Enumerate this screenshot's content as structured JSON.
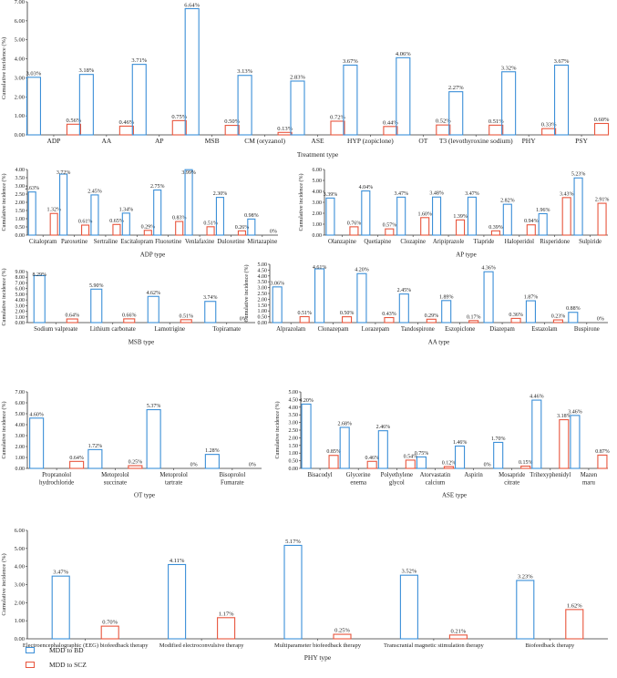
{
  "colors": {
    "bd": "#3b8fd8",
    "scz": "#e8553d",
    "axis": "#333333",
    "text": "#222222"
  },
  "legend": {
    "bd_label": "MDD to BD",
    "scz_label": "MDD to SCZ"
  },
  "chart_data": [
    {
      "type": "bar",
      "xlabel": "Treatment type",
      "ylabel": "Cumulative incidence (%)",
      "ylim": [
        0,
        7
      ],
      "yticks": [
        "0.00",
        "1.00",
        "2.00",
        "3.00",
        "4.00",
        "5.00",
        "6.00",
        "7.00"
      ],
      "categories": [
        "ADP",
        "AA",
        "AP",
        "MSB",
        "CM (oryzanol)",
        "ASE",
        "HYP (zopiclone)",
        "OT",
        "T3 (levothyroxine sodium)",
        "PHY",
        "PSY"
      ],
      "series": [
        {
          "name": "MDD to BD",
          "values": [
            3.03,
            3.18,
            3.71,
            6.64,
            3.13,
            2.83,
            3.67,
            4.06,
            2.27,
            3.32,
            3.67
          ],
          "labels": [
            "3.03%",
            "3.18%",
            "3.71%",
            "6.64%",
            "3.13%",
            "2.83%",
            "3.67%",
            "4.06%",
            "2.27%",
            "3.32%",
            "3.67%"
          ]
        },
        {
          "name": "MDD to SCZ",
          "values": [
            0.56,
            0.46,
            0.75,
            0.5,
            0.13,
            0.72,
            0.44,
            0.52,
            0.51,
            0.33,
            0.6
          ],
          "labels": [
            "0.56%",
            "0.46%",
            "0.75%",
            "0.50%",
            "0.13%",
            "0.72%",
            "0.44%",
            "0.52%",
            "0.51%",
            "0.33%",
            "0.60%"
          ]
        }
      ]
    },
    {
      "type": "bar",
      "xlabel": "ADP type",
      "ylabel": "Cumulative incidence (%)",
      "ylim": [
        0,
        4
      ],
      "yticks": [
        "0.00",
        "0.50",
        "1.00",
        "1.50",
        "2.00",
        "2.50",
        "3.00",
        "3.50",
        "4.00"
      ],
      "categories": [
        "Citalopram",
        "Paroxetine",
        "Sertraline",
        "Escitalopram",
        "Fluoxetine",
        "Venlafaxine",
        "Duloxetine",
        "Mirtazapine"
      ],
      "series": [
        {
          "name": "MDD to BD",
          "values": [
            2.63,
            3.72,
            2.45,
            1.34,
            2.75,
            3.99,
            2.3,
            0.98
          ],
          "labels": [
            "2.63%",
            "3.72%",
            "2.45%",
            "1.34%",
            "2.75%",
            "3.99%",
            "2.30%",
            "0.98%"
          ]
        },
        {
          "name": "MDD to SCZ",
          "values": [
            1.32,
            0.61,
            0.65,
            0.29,
            0.83,
            0.51,
            0.26,
            0
          ],
          "labels": [
            "1.32%",
            "0.61%",
            "0.65%",
            "0.29%",
            "0.83%",
            "0.51%",
            "0.26%",
            "0%"
          ]
        }
      ]
    },
    {
      "type": "bar",
      "xlabel": "AP type",
      "ylabel": "Cumulative incidence (%)",
      "ylim": [
        0,
        6
      ],
      "yticks": [
        "0.00",
        "1.00",
        "2.00",
        "3.00",
        "4.00",
        "5.00",
        "6.00"
      ],
      "categories": [
        "Olanzapine",
        "Quetiapine",
        "Clozapine",
        "Aripiprazole",
        "Tiapride",
        "Haloperidol",
        "Risperidone",
        "Sulpiride"
      ],
      "series": [
        {
          "name": "MDD to BD",
          "values": [
            3.39,
            4.04,
            3.47,
            3.48,
            3.47,
            2.82,
            1.96,
            5.23
          ],
          "labels": [
            "3.39%",
            "4.04%",
            "3.47%",
            "3.48%",
            "3.47%",
            "2.82%",
            "1.96%",
            "5.23%"
          ]
        },
        {
          "name": "MDD to SCZ",
          "values": [
            0.76,
            0.57,
            1.6,
            1.39,
            0.39,
            0.94,
            3.43,
            2.91
          ],
          "labels": [
            "0.76%",
            "0.57%",
            "1.60%",
            "1.39%",
            "0.39%",
            "0.94%",
            "3.43%",
            "2.91%"
          ]
        }
      ]
    },
    {
      "type": "bar",
      "xlabel": "MSB type",
      "ylabel": "Cumulative incidence (%)",
      "ylim": [
        0,
        9
      ],
      "yticks": [
        "0.00",
        "1.00",
        "2.00",
        "3.00",
        "4.00",
        "5.00",
        "6.00",
        "7.00",
        "8.00",
        "9.00"
      ],
      "categories": [
        "Sodium valproate",
        "Lithium carbonate",
        "Lamotrigine",
        "Topiramate"
      ],
      "series": [
        {
          "name": "MDD to BD",
          "values": [
            8.29,
            5.9,
            4.62,
            3.74
          ],
          "labels": [
            "8.29%",
            "5.90%",
            "4.62%",
            "3.74%"
          ]
        },
        {
          "name": "MDD to SCZ",
          "values": [
            0.64,
            0.66,
            0.51,
            0
          ],
          "labels": [
            "0.64%",
            "0.66%",
            "0.51%",
            "0%"
          ]
        }
      ]
    },
    {
      "type": "bar",
      "xlabel": "AA type",
      "ylabel": "Cumulative incidence (%)",
      "ylim": [
        0,
        5
      ],
      "yticks": [
        "0.00",
        "0.50",
        "1.00",
        "1.50",
        "2.00",
        "2.50",
        "3.00",
        "3.50",
        "4.00",
        "4.50",
        "5.00"
      ],
      "categories": [
        "Alprazolam",
        "Clonazepam",
        "Lorazepam",
        "Tandospirone",
        "Eszopiclone",
        "Diazepam",
        "Estazolam",
        "Buspirone"
      ],
      "series": [
        {
          "name": "MDD to BD",
          "values": [
            3.06,
            4.61,
            4.2,
            2.45,
            1.89,
            4.36,
            1.87,
            0.88
          ],
          "labels": [
            "3.06%",
            "4.61%",
            "4.20%",
            "2.45%",
            "1.89%",
            "4.36%",
            "1.87%",
            "0.88%"
          ]
        },
        {
          "name": "MDD to SCZ",
          "values": [
            0.51,
            0.5,
            0.43,
            0.29,
            0.17,
            0.36,
            0.23,
            0
          ],
          "labels": [
            "0.51%",
            "0.50%",
            "0.43%",
            "0.29%",
            "0.17%",
            "0.36%",
            "0.23%",
            "0%"
          ]
        }
      ]
    },
    {
      "type": "bar",
      "xlabel": "OT type",
      "ylabel": "Cumulative incidence (%)",
      "ylim": [
        0,
        7
      ],
      "yticks": [
        "0.00",
        "1.00",
        "2.00",
        "3.00",
        "4.00",
        "5.00",
        "6.00",
        "7.00"
      ],
      "categories": [
        [
          "Propranolol",
          "hydrochloride"
        ],
        [
          "Metoprolol",
          "succinate"
        ],
        [
          "Metoprolol",
          "tartrate"
        ],
        [
          "Bisoprolol",
          "Fumarate"
        ]
      ],
      "series": [
        {
          "name": "MDD to BD",
          "values": [
            4.6,
            1.72,
            5.37,
            1.28
          ],
          "labels": [
            "4.60%",
            "1.72%",
            "5.37%",
            "1.28%"
          ]
        },
        {
          "name": "MDD to SCZ",
          "values": [
            0.64,
            0.25,
            0,
            0
          ],
          "labels": [
            "0.64%",
            "0.25%",
            "0%",
            "0%"
          ]
        }
      ]
    },
    {
      "type": "bar",
      "xlabel": "ASE type",
      "ylabel": "Cumulative incidence (%)",
      "ylim": [
        0,
        5
      ],
      "yticks": [
        "0.00",
        "0.50",
        "1.00",
        "1.50",
        "2.00",
        "2.50",
        "3.00",
        "3.50",
        "4.00",
        "4.50",
        "5.00"
      ],
      "categories": [
        [
          "Bisacodyl"
        ],
        [
          "Glycerine",
          "enema"
        ],
        [
          "Polyethylene",
          "glycol"
        ],
        [
          "Atorvastatin",
          "calcium"
        ],
        [
          "Aspirin"
        ],
        [
          "Mosapride",
          "citrate"
        ],
        [
          "Trihexyphenidyl"
        ],
        [
          "Mazen",
          "maru"
        ]
      ],
      "series": [
        {
          "name": "MDD to BD",
          "values": [
            4.2,
            2.68,
            2.46,
            0.75,
            1.46,
            1.7,
            4.46,
            3.46
          ],
          "labels": [
            "4.20%",
            "2.68%",
            "2.46%",
            "0.75%",
            "1.46%",
            "1.70%",
            "4.46%",
            "3.46%"
          ]
        },
        {
          "name": "MDD to SCZ",
          "values": [
            0.85,
            0.46,
            0.54,
            0.12,
            0,
            0.15,
            3.18,
            0.87
          ],
          "labels": [
            "0.85%",
            "0.46%",
            "0.54%",
            "0.12%",
            "0%",
            "0.15%",
            "3.18%",
            "0.87%"
          ]
        }
      ]
    },
    {
      "type": "bar",
      "xlabel": "PHY type",
      "ylabel": "Cumulative incidence (%)",
      "ylim": [
        0,
        6
      ],
      "yticks": [
        "0.00",
        "1.00",
        "2.00",
        "3.00",
        "4.00",
        "5.00",
        "6.00"
      ],
      "categories": [
        "Electroencephalographic (EEG) biofeedback therapy",
        "Modified electroconvulsive therapy",
        "Multiparameter biofeedback therapy",
        "Transcranial magnetic stimulation therapy",
        "Biofeedback therapy"
      ],
      "series": [
        {
          "name": "MDD to BD",
          "values": [
            3.47,
            4.11,
            5.17,
            3.52,
            3.23
          ],
          "labels": [
            "3.47%",
            "4.11%",
            "5.17%",
            "3.52%",
            "3.23%"
          ]
        },
        {
          "name": "MDD to SCZ",
          "values": [
            0.7,
            1.17,
            0.25,
            0.21,
            1.62
          ],
          "labels": [
            "0.70%",
            "1.17%",
            "0.25%",
            "0.21%",
            "1.62%"
          ]
        }
      ]
    }
  ]
}
